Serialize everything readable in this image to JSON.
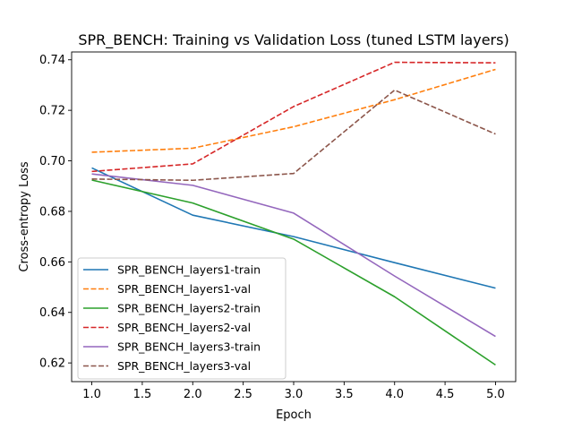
{
  "chart_data": {
    "type": "line",
    "title": "SPR_BENCH: Training vs Validation Loss (tuned LSTM layers)",
    "xlabel": "Epoch",
    "ylabel": "Cross-entropy Loss",
    "x": [
      1,
      2,
      3,
      4,
      5
    ],
    "xlim": [
      0.8,
      5.2
    ],
    "ylim": [
      0.6126,
      0.7431
    ],
    "xticks": [
      "1.0",
      "1.5",
      "2.0",
      "2.5",
      "3.0",
      "3.5",
      "4.0",
      "4.5",
      "5.0"
    ],
    "yticks": [
      "0.62",
      "0.64",
      "0.66",
      "0.68",
      "0.70",
      "0.72",
      "0.74"
    ],
    "grid": false,
    "legend_position": "lower-left",
    "series": [
      {
        "name": "SPR_BENCH_layers1-train",
        "color": "#1f77b4",
        "dash": "solid",
        "values": [
          0.6972,
          0.6785,
          0.67,
          0.6597,
          0.6496
        ]
      },
      {
        "name": "SPR_BENCH_layers1-val",
        "color": "#ff7f0e",
        "dash": "dashed",
        "values": [
          0.7034,
          0.705,
          0.7135,
          0.7242,
          0.7362
        ]
      },
      {
        "name": "SPR_BENCH_layers2-train",
        "color": "#2ca02c",
        "dash": "solid",
        "values": [
          0.6924,
          0.6833,
          0.669,
          0.6462,
          0.6192
        ]
      },
      {
        "name": "SPR_BENCH_layers2-val",
        "color": "#d62728",
        "dash": "dashed",
        "values": [
          0.6958,
          0.6988,
          0.7215,
          0.739,
          0.7388
        ]
      },
      {
        "name": "SPR_BENCH_layers3-train",
        "color": "#9467bd",
        "dash": "solid",
        "values": [
          0.6948,
          0.6903,
          0.6793,
          0.6544,
          0.6305
        ]
      },
      {
        "name": "SPR_BENCH_layers3-val",
        "color": "#8c564b",
        "dash": "dashed",
        "values": [
          0.6928,
          0.6923,
          0.695,
          0.728,
          0.7106
        ]
      }
    ]
  }
}
